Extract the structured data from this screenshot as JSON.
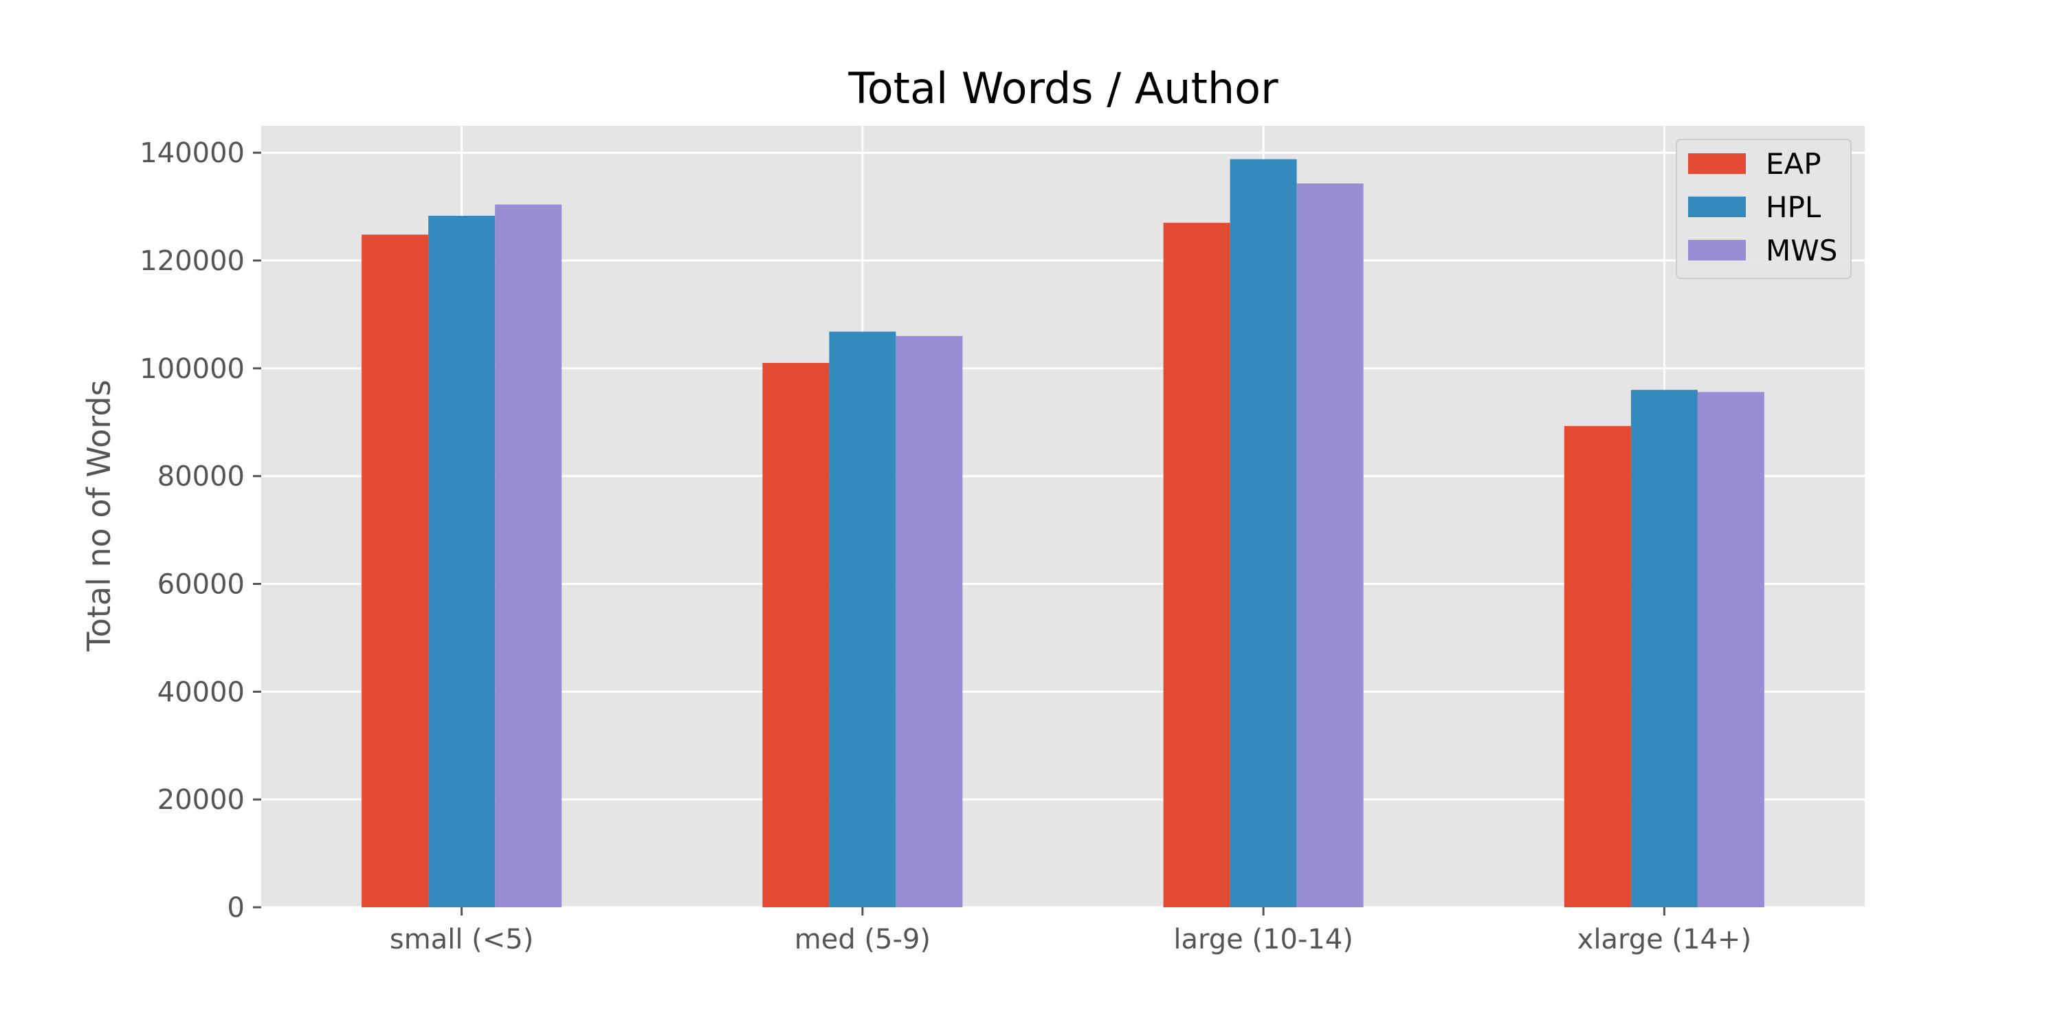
{
  "chart_data": {
    "type": "bar",
    "title": "Total Words / Author",
    "xlabel": "",
    "ylabel": "Total no of Words",
    "categories": [
      "small (<5)",
      "med (5-9)",
      "large (10-14)",
      "xlarge (14+)"
    ],
    "series": [
      {
        "name": "EAP",
        "color": "#E24A33",
        "values": [
          124800,
          101000,
          127000,
          89300
        ]
      },
      {
        "name": "HPL",
        "color": "#348ABD",
        "values": [
          128300,
          106800,
          138800,
          96000
        ]
      },
      {
        "name": "MWS",
        "color": "#988ED5",
        "values": [
          130400,
          106000,
          134300,
          95600
        ]
      }
    ],
    "ylim": [
      0,
      145000
    ],
    "yticks": [
      0,
      20000,
      40000,
      60000,
      80000,
      100000,
      120000,
      140000
    ],
    "ytick_labels": [
      "0",
      "20000",
      "40000",
      "60000",
      "80000",
      "100000",
      "120000",
      "140000"
    ],
    "grid": true,
    "legend_position": "top-right",
    "style": {
      "background": "#E5E5E5",
      "grid_color": "#FFFFFF"
    }
  }
}
